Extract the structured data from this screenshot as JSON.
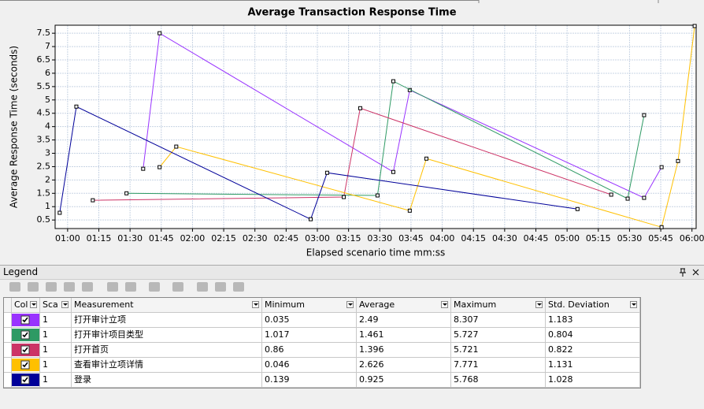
{
  "chart_data": {
    "type": "line",
    "title": "Average Transaction Response Time",
    "x_label": "Elapsed scenario time mm:ss",
    "y_label": "Average Response Time (seconds)",
    "xlim": [
      54,
      362
    ],
    "ylim": [
      0.18,
      7.8
    ],
    "xticks": [
      {
        "value": 60,
        "label": "01:00"
      },
      {
        "value": 75,
        "label": "01:15"
      },
      {
        "value": 90,
        "label": "01:30"
      },
      {
        "value": 105,
        "label": "01:45"
      },
      {
        "value": 120,
        "label": "02:00"
      },
      {
        "value": 135,
        "label": "02:15"
      },
      {
        "value": 150,
        "label": "02:30"
      },
      {
        "value": 165,
        "label": "02:45"
      },
      {
        "value": 180,
        "label": "03:00"
      },
      {
        "value": 195,
        "label": "03:15"
      },
      {
        "value": 210,
        "label": "03:30"
      },
      {
        "value": 225,
        "label": "03:45"
      },
      {
        "value": 240,
        "label": "04:00"
      },
      {
        "value": 255,
        "label": "04:15"
      },
      {
        "value": 270,
        "label": "04:30"
      },
      {
        "value": 285,
        "label": "04:45"
      },
      {
        "value": 300,
        "label": "05:00"
      },
      {
        "value": 315,
        "label": "05:15"
      },
      {
        "value": 330,
        "label": "05:30"
      },
      {
        "value": 345,
        "label": "05:45"
      },
      {
        "value": 360,
        "label": "06:00"
      }
    ],
    "yticks": [
      0.5,
      1,
      1.5,
      2,
      2.5,
      3,
      3.5,
      4,
      4.5,
      5,
      5.5,
      6,
      6.5,
      7,
      7.5
    ],
    "grid": true,
    "series": [
      {
        "name": "打开审计立项",
        "color": "#9933ff",
        "x": [
          96.3,
          104.2,
          216.5,
          224.4,
          337.0,
          345.4
        ],
        "values": [
          2.42,
          7.5,
          2.3,
          5.37,
          1.33,
          2.48
        ]
      },
      {
        "name": "打开审计项目类型",
        "color": "#2e9a64",
        "x": [
          88.3,
          208.9,
          216.5,
          329.1,
          337.0
        ],
        "values": [
          1.5,
          1.42,
          5.7,
          1.3,
          4.43
        ]
      },
      {
        "name": "打开首页",
        "color": "#cc3366",
        "x": [
          72.1,
          192.7,
          200.6,
          321.2
        ],
        "values": [
          1.24,
          1.36,
          4.69,
          1.45
        ]
      },
      {
        "name": "查看审计立项详情",
        "color": "#ffc000",
        "x": [
          104.2,
          112.2,
          224.4,
          232.4,
          345.4,
          353.3,
          361.3
        ],
        "values": [
          2.48,
          3.25,
          0.85,
          2.8,
          0.23,
          2.71,
          7.77
        ]
      },
      {
        "name": "登录",
        "color": "#000099",
        "x": [
          56.2,
          64.2,
          176.8,
          184.7,
          305.0
        ],
        "values": [
          0.77,
          4.75,
          0.53,
          2.27,
          0.91
        ]
      }
    ]
  },
  "legend": {
    "title": "Legend",
    "columns": [
      "Col",
      "Sca",
      "Measurement",
      "Minimum",
      "Average",
      "Maximum",
      "Std. Deviation"
    ],
    "rows": [
      {
        "scale": "1",
        "minimum": "0.035",
        "average": "2.49",
        "maximum": "8.307",
        "std": "1.183"
      },
      {
        "scale": "1",
        "minimum": "1.017",
        "average": "1.461",
        "maximum": "5.727",
        "std": "0.804"
      },
      {
        "scale": "1",
        "minimum": "0.86",
        "average": "1.396",
        "maximum": "5.721",
        "std": "0.822"
      },
      {
        "scale": "1",
        "minimum": "0.046",
        "average": "2.626",
        "maximum": "7.771",
        "std": "1.131"
      },
      {
        "scale": "1",
        "minimum": "0.139",
        "average": "0.925",
        "maximum": "5.768",
        "std": "1.028"
      }
    ]
  }
}
